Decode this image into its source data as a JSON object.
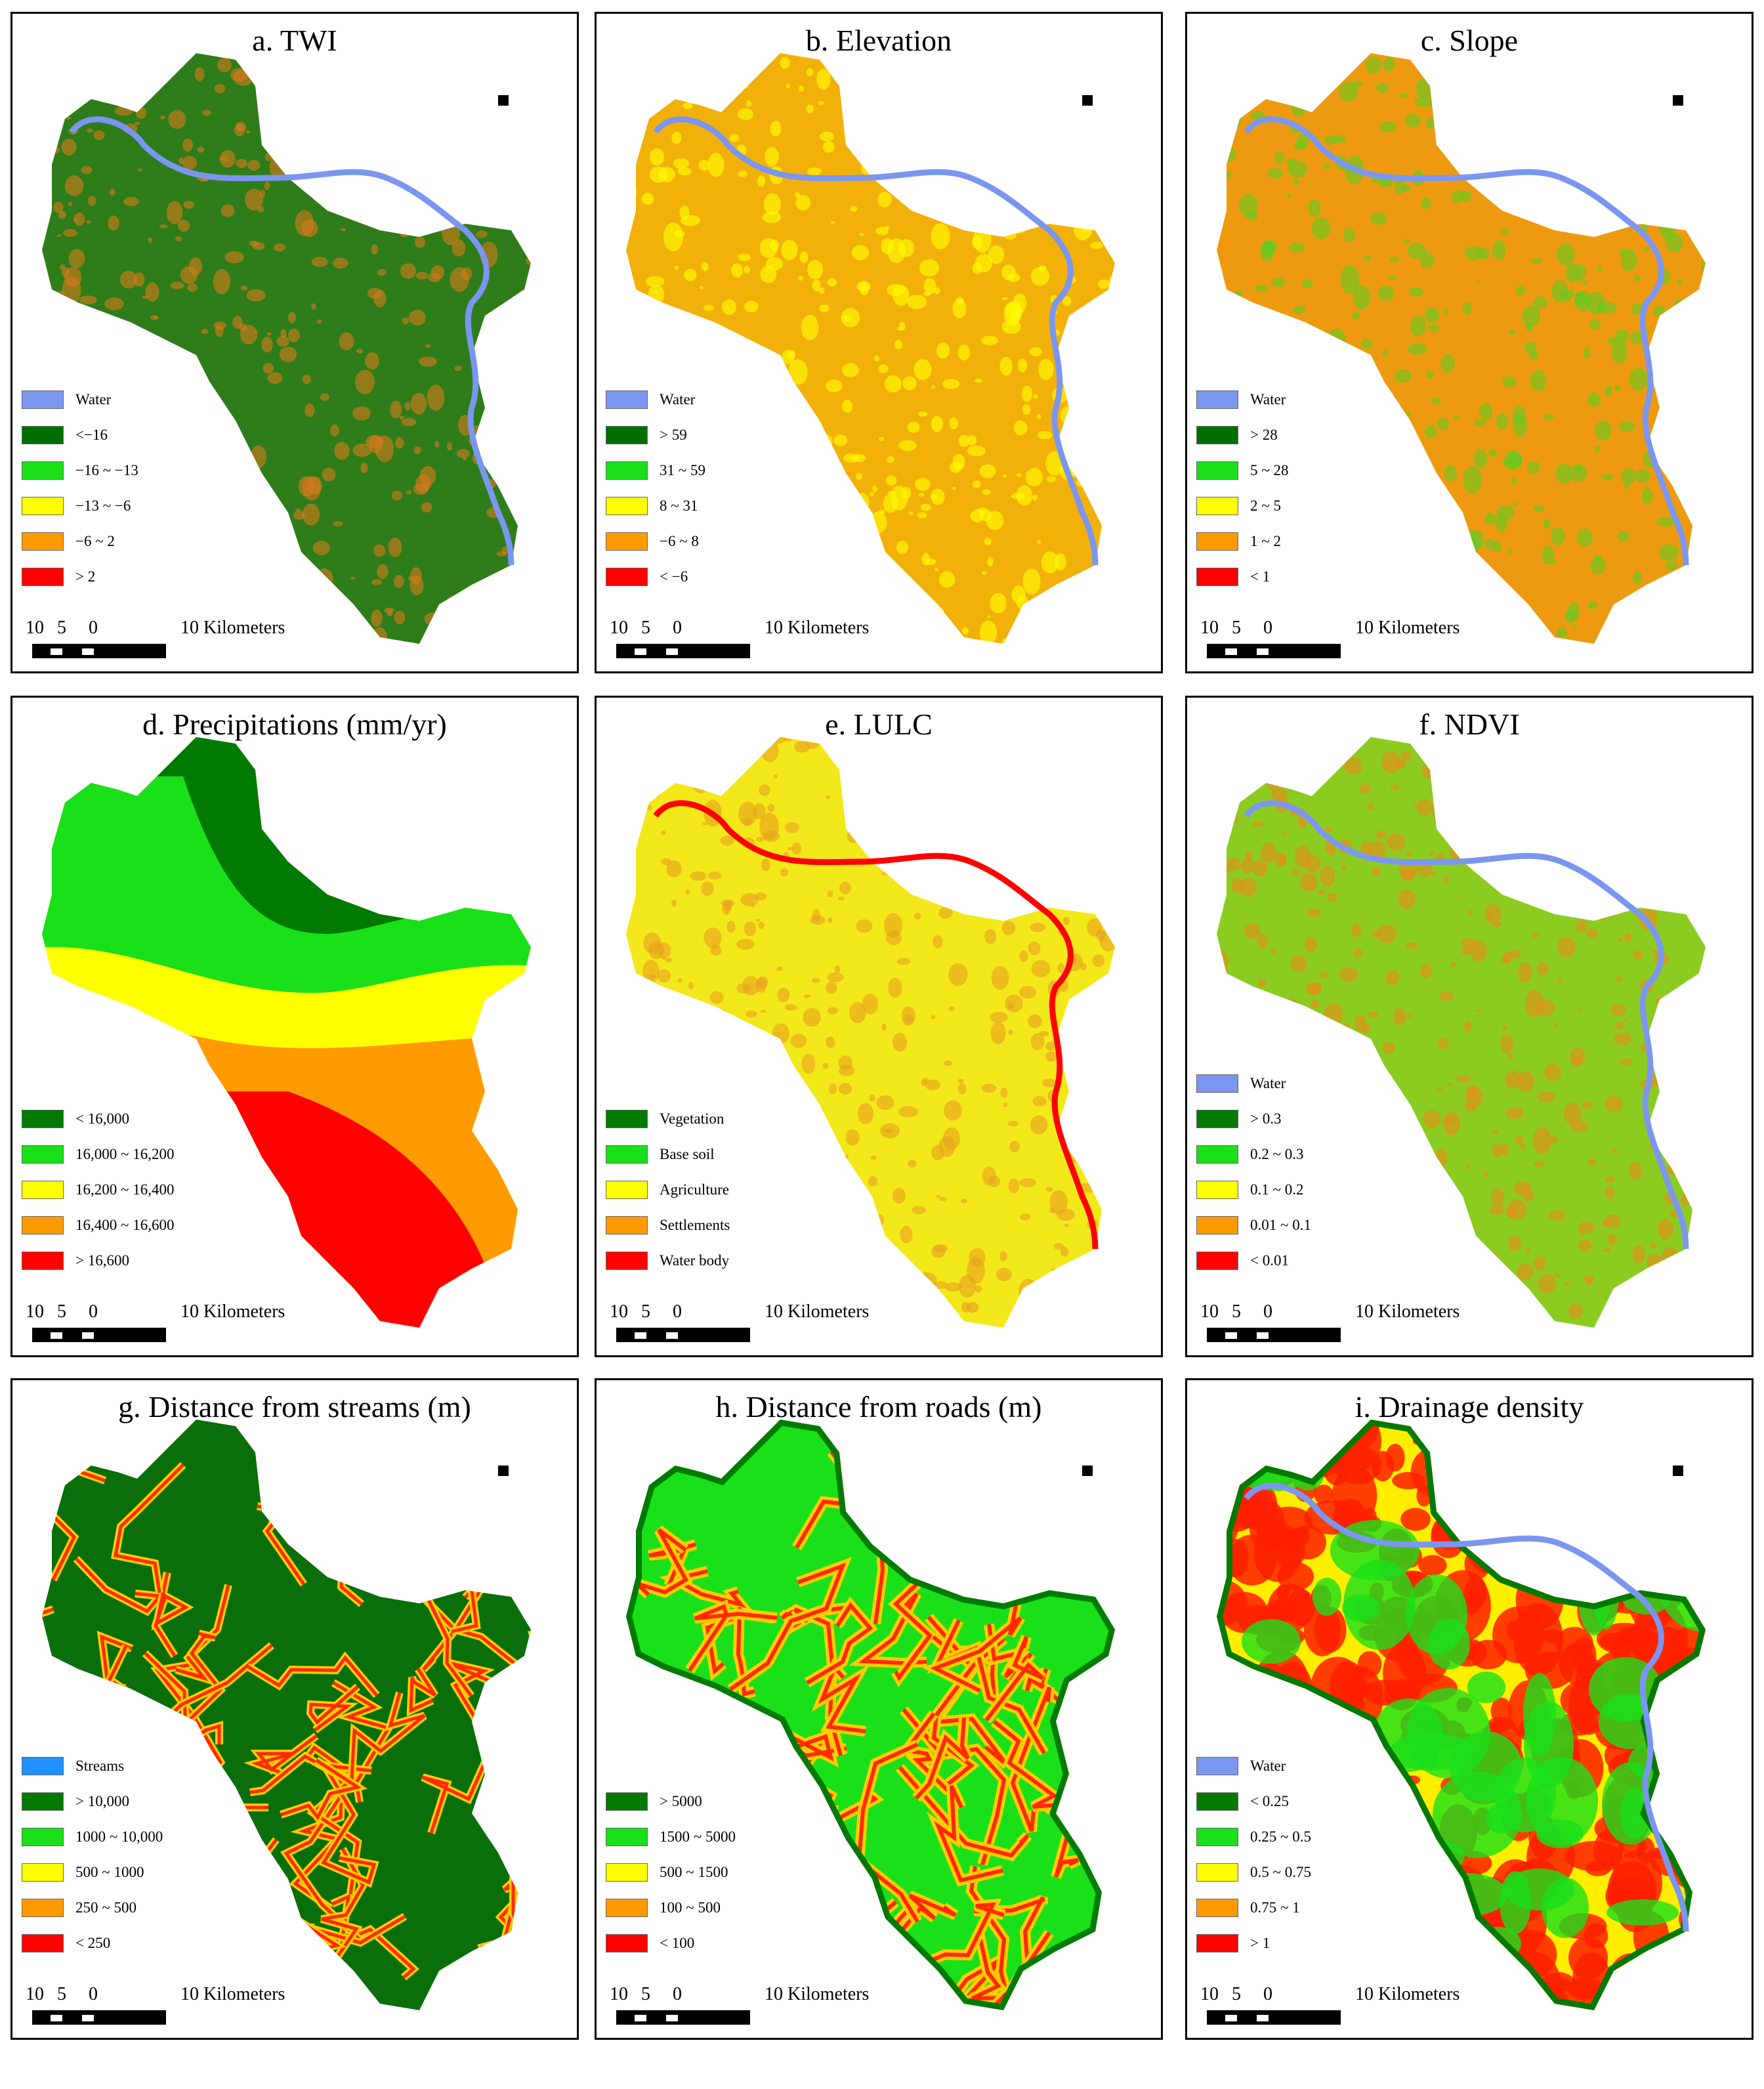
{
  "scale_bar": {
    "n10": "10",
    "n5": "5",
    "n0": "0",
    "label": "10 Kilometers"
  },
  "panels": [
    {
      "title": "a. TWI",
      "fill_main": "#2e7d1a",
      "fill_speckle": "#d97a1a",
      "water": "#7b96f0",
      "legend": [
        {
          "color": "#7b96f0",
          "label": "Water"
        },
        {
          "color": "#006e00",
          "label": "<−16"
        },
        {
          "color": "#1ae01a",
          "label": "−16 ~ −13"
        },
        {
          "color": "#ffff00",
          "label": "−13 ~ −6"
        },
        {
          "color": "#ff9b00",
          "label": "−6 ~ 2"
        },
        {
          "color": "#ff0000",
          "label": "> 2"
        }
      ]
    },
    {
      "title": "b. Elevation",
      "fill_main": "#f2b10a",
      "fill_speckle": "#ffff00",
      "water": "#7b96f0",
      "legend": [
        {
          "color": "#7b96f0",
          "label": "Water"
        },
        {
          "color": "#006e00",
          "label": "> 59"
        },
        {
          "color": "#1ae01a",
          "label": "31 ~ 59"
        },
        {
          "color": "#ffff00",
          "label": "8 ~ 31"
        },
        {
          "color": "#ff9b00",
          "label": "−6 ~ 8"
        },
        {
          "color": "#ff0000",
          "label": "< −6"
        }
      ]
    },
    {
      "title": "c. Slope",
      "fill_main": "#ee9a10",
      "fill_speckle": "#60cc20",
      "water": "#7b96f0",
      "legend": [
        {
          "color": "#7b96f0",
          "label": "Water"
        },
        {
          "color": "#006e00",
          "label": "> 28"
        },
        {
          "color": "#1ae01a",
          "label": "5 ~ 28"
        },
        {
          "color": "#ffff00",
          "label": "2 ~ 5"
        },
        {
          "color": "#ff9b00",
          "label": "1 ~ 2"
        },
        {
          "color": "#ff0000",
          "label": "< 1"
        }
      ]
    },
    {
      "title": "d. Precipitations (mm/yr)",
      "fill_main": "#ffff00",
      "fill_speckle": "#ff9b00",
      "water": "",
      "legend": [
        {
          "color": "#007a00",
          "label": "< 16,000"
        },
        {
          "color": "#1ae01a",
          "label": "16,000 ~ 16,200"
        },
        {
          "color": "#ffff00",
          "label": "16,200 ~ 16,400"
        },
        {
          "color": "#ff9b00",
          "label": "16,400 ~ 16,600"
        },
        {
          "color": "#ff0000",
          "label": "> 16,600"
        }
      ]
    },
    {
      "title": "e. LULC",
      "fill_main": "#f3e81a",
      "fill_speckle": "#e8a020",
      "water": "#ff0000",
      "legend": [
        {
          "color": "#007a00",
          "label": "Vegetation"
        },
        {
          "color": "#1ae01a",
          "label": "Base soil"
        },
        {
          "color": "#ffff00",
          "label": "Agriculture"
        },
        {
          "color": "#ff9b00",
          "label": "Settlements"
        },
        {
          "color": "#ff0000",
          "label": "Water body"
        }
      ]
    },
    {
      "title": "f. NDVI",
      "fill_main": "#8ccc20",
      "fill_speckle": "#e88a1a",
      "water": "#7b96f0",
      "legend": [
        {
          "color": "#7b96f0",
          "label": "Water"
        },
        {
          "color": "#007a00",
          "label": "> 0.3"
        },
        {
          "color": "#1ae01a",
          "label": "0.2 ~ 0.3"
        },
        {
          "color": "#ffff00",
          "label": "0.1 ~ 0.2"
        },
        {
          "color": "#ff9b00",
          "label": "0.01 ~ 0.1"
        },
        {
          "color": "#ff0000",
          "label": "< 0.01"
        }
      ]
    },
    {
      "title": "g. Distance from streams (m)",
      "fill_main": "#0a6e0a",
      "fill_speckle": "#ff2a00",
      "water": "",
      "legend": [
        {
          "color": "#1e90ff",
          "label": "Streams"
        },
        {
          "color": "#007a00",
          "label": "> 10,000"
        },
        {
          "color": "#1ae01a",
          "label": "1000 ~ 10,000"
        },
        {
          "color": "#ffff00",
          "label": "500 ~ 1000"
        },
        {
          "color": "#ff9b00",
          "label": "250 ~ 500"
        },
        {
          "color": "#ff0000",
          "label": "< 250"
        }
      ]
    },
    {
      "title": "h. Distance from roads (m)",
      "fill_main": "#1ae01a",
      "fill_speckle": "#ff2a00",
      "water": "",
      "legend": [
        {
          "color": "#007a00",
          "label": "> 5000"
        },
        {
          "color": "#1ae01a",
          "label": "1500 ~ 5000"
        },
        {
          "color": "#ffff00",
          "label": "500 ~ 1500"
        },
        {
          "color": "#ff9b00",
          "label": "100 ~ 500"
        },
        {
          "color": "#ff0000",
          "label": "< 100"
        }
      ]
    },
    {
      "title": "i. Drainage density",
      "fill_main": "#ffee00",
      "fill_speckle": "#ff2000",
      "water": "#7b96f0",
      "legend": [
        {
          "color": "#7b96f0",
          "label": "Water"
        },
        {
          "color": "#007a00",
          "label": "< 0.25"
        },
        {
          "color": "#1ae01a",
          "label": "0.25 ~ 0.5"
        },
        {
          "color": "#ffff00",
          "label": "0.5 ~ 0.75"
        },
        {
          "color": "#ff9b00",
          "label": "0.75 ~ 1"
        },
        {
          "color": "#ff0000",
          "label": "> 1"
        }
      ]
    }
  ]
}
